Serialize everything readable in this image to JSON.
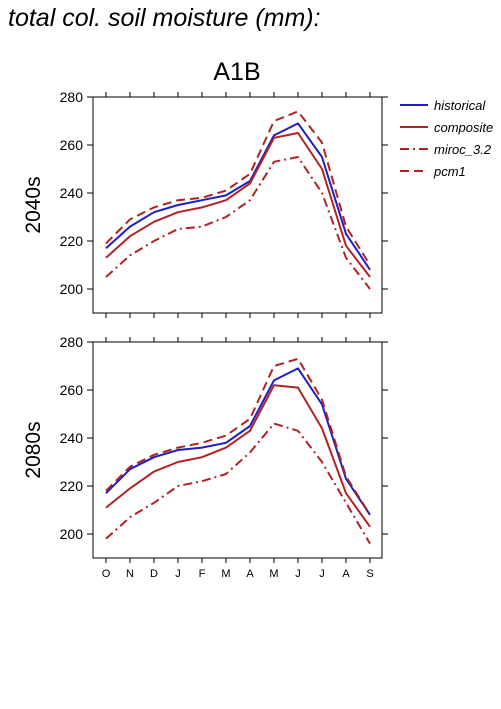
{
  "page": {
    "title": "total col. soil moisture (mm):"
  },
  "chart_data": {
    "type": "line",
    "scenario": "A1B",
    "months": [
      "O",
      "N",
      "D",
      "J",
      "F",
      "M",
      "A",
      "M",
      "J",
      "J",
      "A",
      "S"
    ],
    "legend": [
      {
        "name": "historical",
        "color": "#1f1fbf",
        "dash": "solid"
      },
      {
        "name": "composite",
        "color": "#b22222",
        "dash": "solid"
      },
      {
        "name": "miroc_3.2",
        "color": "#b22222",
        "dash": "dashdot"
      },
      {
        "name": "pcm1",
        "color": "#b22222",
        "dash": "dashed"
      }
    ],
    "panels": [
      {
        "label": "2040s",
        "ylim": [
          190,
          280
        ],
        "yticks": [
          200,
          220,
          240,
          260,
          280
        ],
        "series": [
          {
            "name": "historical",
            "values": [
              217,
              226,
              232,
              235,
              237,
              239,
              245,
              264,
              269,
              255,
              223,
              208
            ]
          },
          {
            "name": "composite",
            "values": [
              213,
              222,
              228,
              232,
              234,
              237,
              244,
              263,
              265,
              250,
              218,
              205
            ]
          },
          {
            "name": "miroc_3.2",
            "values": [
              205,
              214,
              220,
              225,
              226,
              230,
              237,
              253,
              255,
              240,
              213,
              200
            ]
          },
          {
            "name": "pcm1",
            "values": [
              219,
              229,
              234,
              237,
              238,
              241,
              248,
              270,
              274,
              261,
              226,
              210
            ]
          }
        ]
      },
      {
        "label": "2080s",
        "ylim": [
          190,
          280
        ],
        "yticks": [
          200,
          220,
          240,
          260,
          280
        ],
        "series": [
          {
            "name": "historical",
            "values": [
              217,
              227,
              232,
              235,
              236,
              238,
              245,
              264,
              269,
              254,
              223,
              208
            ]
          },
          {
            "name": "composite",
            "values": [
              211,
              219,
              226,
              230,
              232,
              236,
              243,
              262,
              261,
              244,
              217,
              203
            ]
          },
          {
            "name": "miroc_3.2",
            "values": [
              198,
              207,
              213,
              220,
              222,
              225,
              234,
              246,
              243,
              230,
              213,
              196
            ]
          },
          {
            "name": "pcm1",
            "values": [
              218,
              228,
              233,
              236,
              238,
              241,
              248,
              270,
              273,
              256,
              224,
              208
            ]
          }
        ]
      }
    ]
  }
}
